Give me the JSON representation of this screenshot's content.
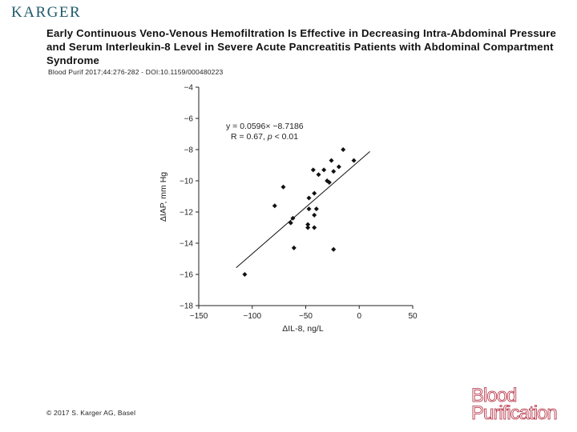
{
  "publisher": {
    "logo_text": "KARGER"
  },
  "title": "Early Continuous Veno-Venous Hemofiltration Is Effective in Decreasing Intra-Abdominal Pressure and Serum Interleukin-8 Level in Severe Acute Pancreatitis Patients with Abdominal Compartment Syndrome",
  "citation": "Blood Purif 2017;44:276-282 - DOI:10.1159/000480223",
  "copyright": "© 2017 S. Karger AG, Basel",
  "journal": {
    "line1": "Blood",
    "line2": "Purification"
  },
  "chart_data": {
    "type": "scatter",
    "xlabel": "ΔIL-8, ng/L",
    "ylabel": "ΔIAP, mm Hg",
    "xlim": [
      -150,
      50
    ],
    "ylim": [
      -18,
      -4
    ],
    "xticks": [
      -150,
      -100,
      -50,
      0,
      50
    ],
    "yticks": [
      -4,
      -6,
      -8,
      -10,
      -12,
      -14,
      -16,
      -18
    ],
    "annotation": {
      "equation": "y = 0.0596× −8.7186",
      "stats_prefix": "R = 0.67, ",
      "stats_p": "p",
      "stats_suffix": " < 0.01"
    },
    "trendline": {
      "slope": 0.0596,
      "intercept": -8.7186,
      "x_range": [
        -115,
        10
      ]
    },
    "points": [
      {
        "x": -107,
        "y": -16.0
      },
      {
        "x": -79,
        "y": -11.6
      },
      {
        "x": -71,
        "y": -10.4
      },
      {
        "x": -64,
        "y": -12.7
      },
      {
        "x": -62,
        "y": -12.4
      },
      {
        "x": -61,
        "y": -14.3
      },
      {
        "x": -48,
        "y": -12.8
      },
      {
        "x": -48,
        "y": -13.0
      },
      {
        "x": -47,
        "y": -11.1
      },
      {
        "x": -47,
        "y": -11.8
      },
      {
        "x": -43,
        "y": -9.3
      },
      {
        "x": -42,
        "y": -10.8
      },
      {
        "x": -42,
        "y": -12.2
      },
      {
        "x": -42,
        "y": -13.0
      },
      {
        "x": -40,
        "y": -11.8
      },
      {
        "x": -38,
        "y": -9.6
      },
      {
        "x": -33,
        "y": -9.3
      },
      {
        "x": -30,
        "y": -10.0
      },
      {
        "x": -28,
        "y": -10.1
      },
      {
        "x": -26,
        "y": -8.7
      },
      {
        "x": -24,
        "y": -9.4
      },
      {
        "x": -24,
        "y": -14.4
      },
      {
        "x": -19,
        "y": -9.1
      },
      {
        "x": -15,
        "y": -8.0
      },
      {
        "x": -5,
        "y": -8.7
      }
    ]
  }
}
